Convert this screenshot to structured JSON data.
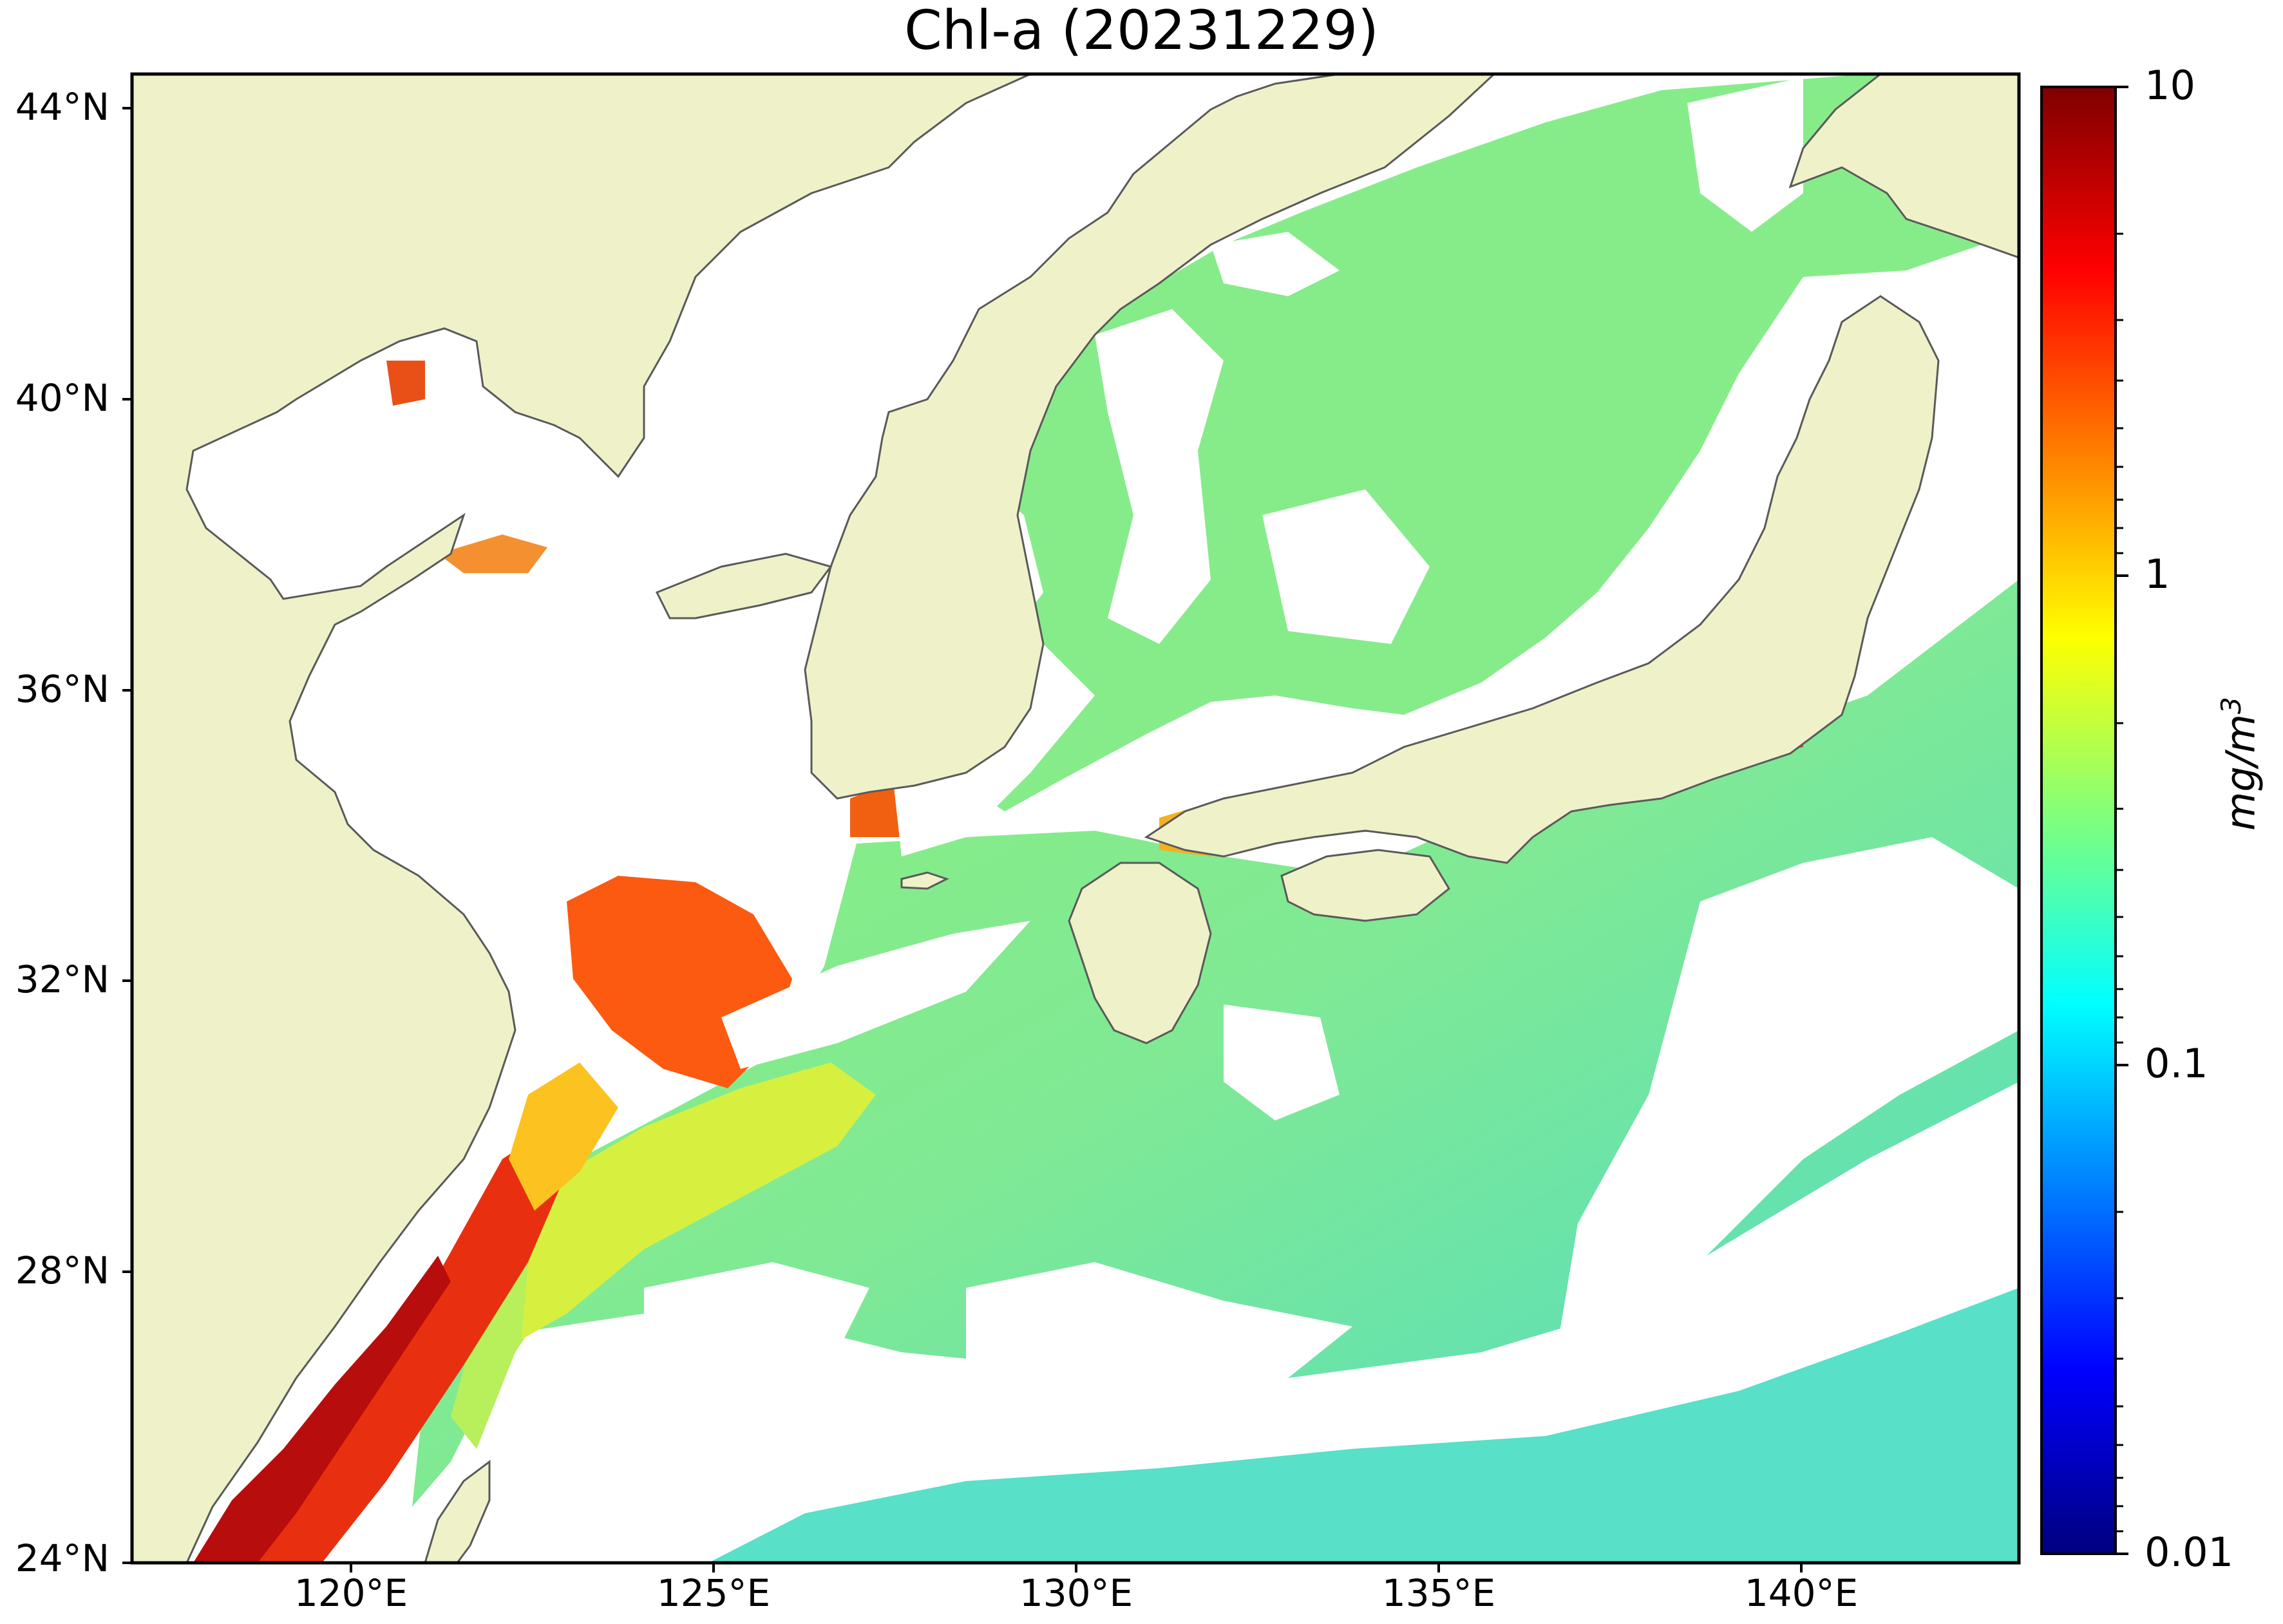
{
  "title": "Chl-a (20231229)",
  "map": {
    "latitude_labels": [
      "44°N",
      "40°N",
      "36°N",
      "32°N",
      "28°N",
      "24°N"
    ],
    "longitude_labels": [
      "120°E",
      "125°E",
      "130°E",
      "135°E",
      "140°E"
    ],
    "colors": {
      "land": "#eff2c9",
      "coast": "#5a5a5a",
      "no_data": "#ffffff"
    }
  },
  "colorbar": {
    "ticks": [
      "10",
      "1",
      "0.1",
      "0.01"
    ],
    "unit_base": "mg/m",
    "unit_exp": "3",
    "scale": "log",
    "colors": [
      "#00007f",
      "#0000ff",
      "#007fff",
      "#00ffff",
      "#7fff7f",
      "#ffff00",
      "#ff7f00",
      "#ff0000",
      "#7f0000"
    ]
  }
}
